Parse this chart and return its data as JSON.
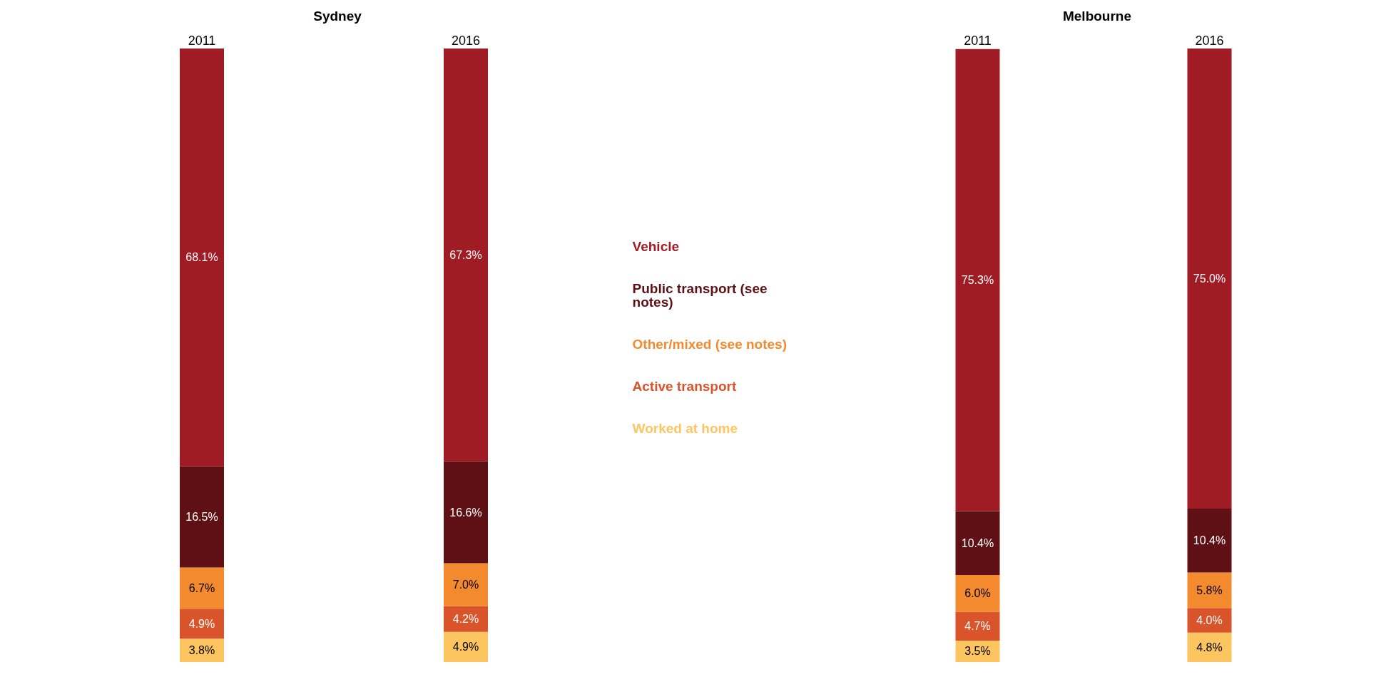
{
  "chart_data": [
    {
      "type": "bar",
      "title": "Sydney",
      "categories": [
        "2011",
        "2016"
      ],
      "stacked": true,
      "series": [
        {
          "name": "Worked at home",
          "color": "#fdc55f",
          "values": [
            3.8,
            4.9
          ],
          "value_labels": [
            "3.8%",
            "4.9%"
          ]
        },
        {
          "name": "Active transport",
          "color": "#d9542a",
          "values": [
            4.9,
            4.2
          ],
          "value_labels": [
            "4.9%",
            "4.2%"
          ]
        },
        {
          "name": "Other/mixed (see notes)",
          "color": "#f38a2e",
          "values": [
            6.7,
            7.0
          ],
          "value_labels": [
            "6.7%",
            "7.0%"
          ]
        },
        {
          "name": "Public transport (see notes)",
          "color": "#5e1015",
          "values": [
            16.5,
            16.6
          ],
          "value_labels": [
            "16.5%",
            "16.6%"
          ]
        },
        {
          "name": "Vehicle",
          "color": "#a01c25",
          "values": [
            68.1,
            67.3
          ],
          "value_labels": [
            "68.1%",
            "67.3%"
          ]
        }
      ]
    },
    {
      "type": "bar",
      "title": "Melbourne",
      "categories": [
        "2011",
        "2016"
      ],
      "stacked": true,
      "series": [
        {
          "color": "#fdc55f",
          "values": [
            3.5,
            4.8
          ],
          "value_labels": [
            "3.5%",
            "4.8%"
          ]
        },
        {
          "color": "#d9542a",
          "values": [
            4.7,
            4.0
          ],
          "value_labels": [
            "4.7%",
            "4.0%"
          ]
        },
        {
          "color": "#f38a2e",
          "values": [
            6.0,
            5.8
          ],
          "value_labels": [
            "6.0%",
            "5.8%"
          ]
        },
        {
          "color": "#5e1015",
          "values": [
            10.4,
            10.4
          ],
          "value_labels": [
            "10.4%",
            "10.4%"
          ]
        },
        {
          "color": "#a01c25",
          "values": [
            75.3,
            75.0
          ],
          "value_labels": [
            "75.3%",
            "75.0%"
          ]
        }
      ]
    }
  ]
}
